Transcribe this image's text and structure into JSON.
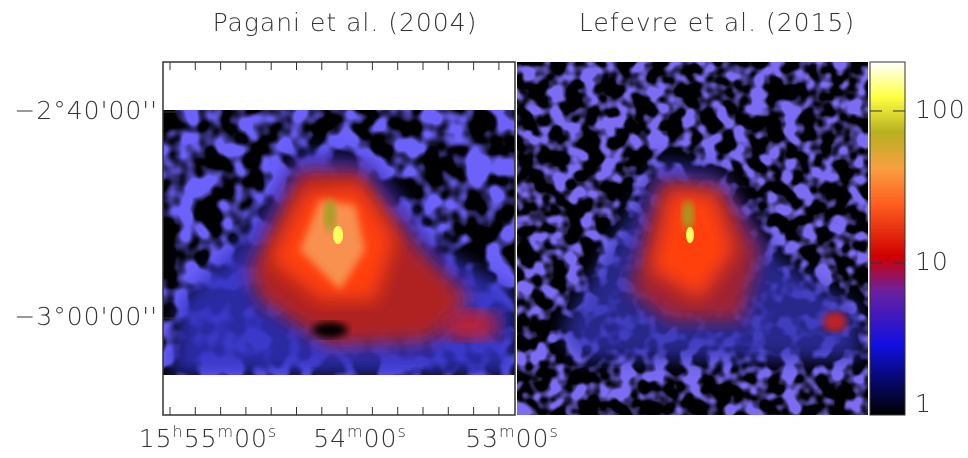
{
  "chart_data": {
    "type": "image",
    "panels": [
      {
        "title": "Pagani et al. (2004)"
      },
      {
        "title": "Lefevre et al. (2015)"
      }
    ],
    "dec_tick_labels": [
      "−2°40'00''",
      "−3°00'00''"
    ],
    "ra_tick_labels": [
      "15h55m00s",
      "54m00s",
      "53m00s"
    ],
    "colorbar": {
      "log": true,
      "lim": [
        1,
        210
      ],
      "ticks": [
        1,
        10,
        100
      ]
    }
  }
}
